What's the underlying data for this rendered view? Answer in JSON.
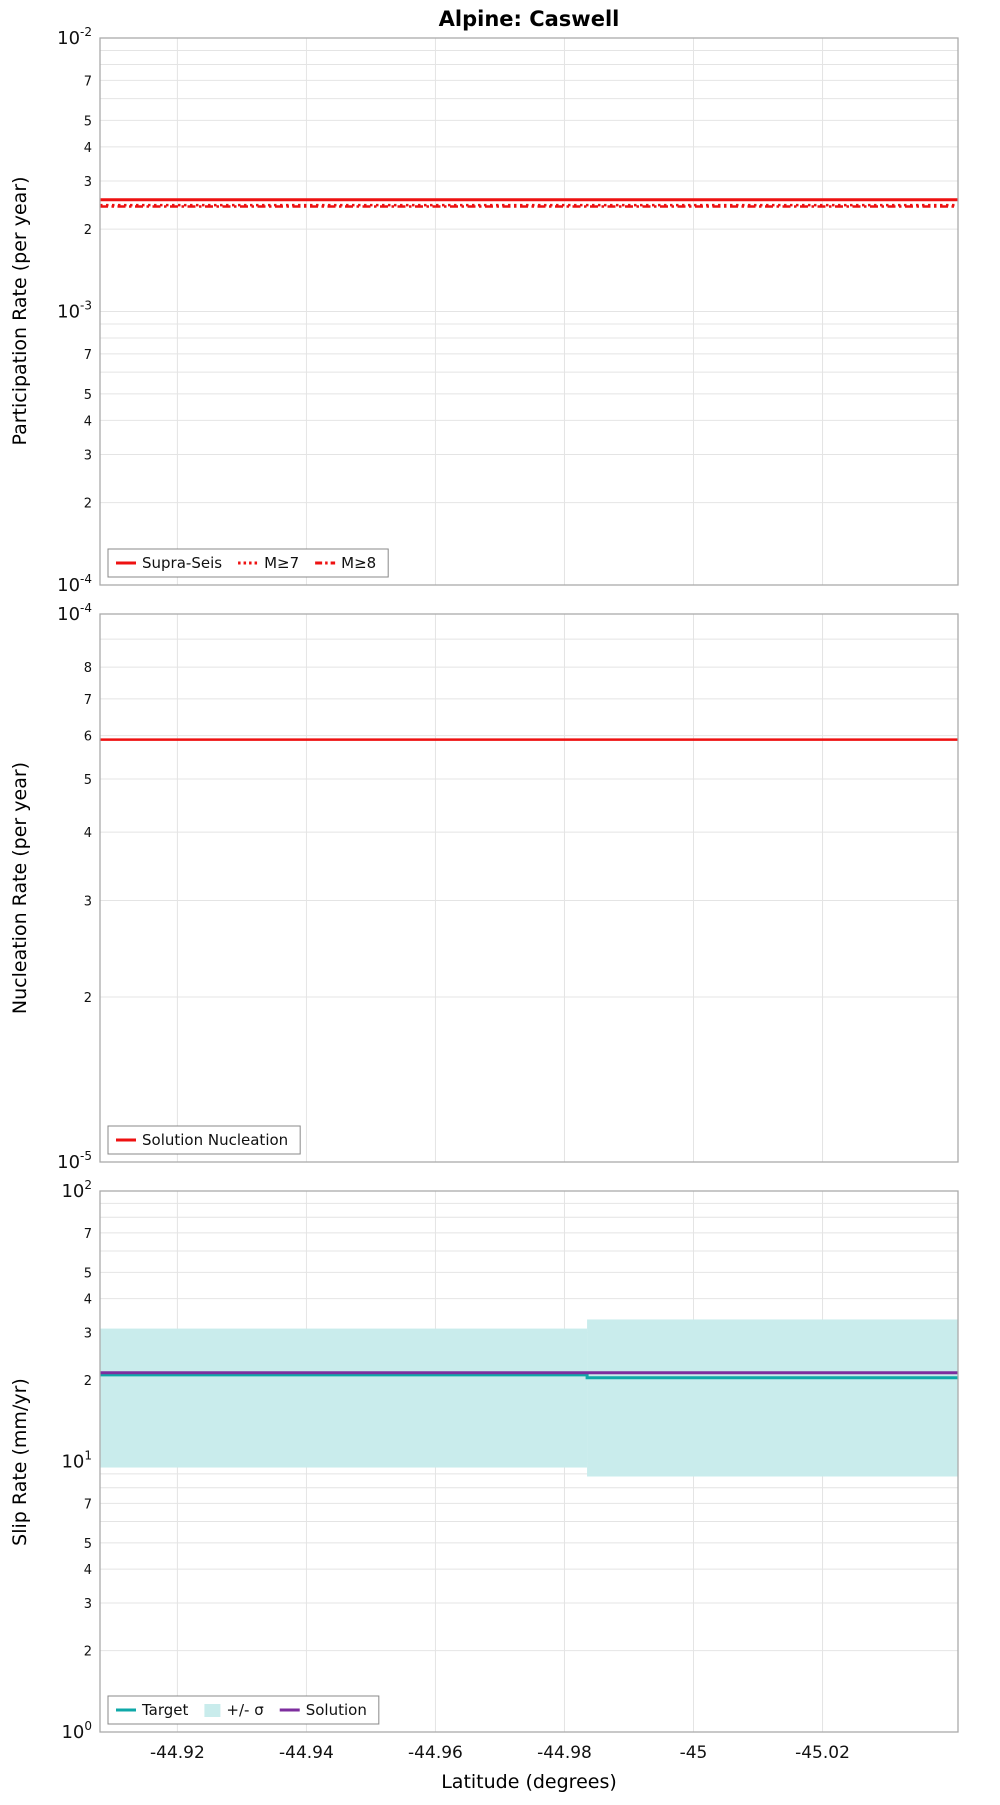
{
  "title": "Alpine: Caswell",
  "xlabel": "Latitude (degrees)",
  "colors": {
    "red": "#ee1111",
    "teal": "#0fa8a8",
    "band": "#c9ecec",
    "purple": "#7d2e9e",
    "grid": "#e4e4e4",
    "frame": "#ababab",
    "text": "#111111"
  },
  "chart_data": [
    {
      "type": "line",
      "panel": "participation-rate",
      "ylabel": "Participation Rate (per year)",
      "yscale": "log",
      "ylim": [
        0.0001,
        0.01
      ],
      "minor_tick_labels": [
        2,
        3,
        4,
        5,
        7
      ],
      "xlim": [
        -44.908,
        -45.041
      ],
      "xticks": [
        -44.92,
        -44.94,
        -44.96,
        -44.98,
        -45,
        -45.02
      ],
      "xtick_labels": [
        "-44.92",
        "-44.94",
        "-44.96",
        "-44.98",
        "-45",
        "-45.02"
      ],
      "grid": true,
      "legend_position": "bottom-left",
      "series": [
        {
          "name": "Supra-Seis",
          "kind": "line",
          "style": "solid",
          "color": "#ee1111",
          "width": 3,
          "x": [
            -44.908,
            -45.041
          ],
          "y": [
            0.00256,
            0.00256
          ]
        },
        {
          "name": "M≥7",
          "kind": "line",
          "style": "dotted",
          "color": "#ee1111",
          "width": 2.5,
          "x": [
            -44.908,
            -45.041
          ],
          "y": [
            0.00245,
            0.00245
          ]
        },
        {
          "name": "M≥8",
          "kind": "line",
          "style": "dashdot",
          "color": "#ee1111",
          "width": 2.5,
          "x": [
            -44.908,
            -45.041
          ],
          "y": [
            0.00242,
            0.00242
          ]
        }
      ],
      "legend": [
        "Supra-Seis",
        "M≥7",
        "M≥8"
      ]
    },
    {
      "type": "line",
      "panel": "nucleation-rate",
      "ylabel": "Nucleation Rate (per year)",
      "yscale": "log",
      "ylim": [
        1e-05,
        0.0001
      ],
      "minor_tick_labels": [
        2,
        3,
        4,
        5,
        6,
        7,
        8
      ],
      "xlim": [
        -44.908,
        -45.041
      ],
      "xticks": [
        -44.92,
        -44.94,
        -44.96,
        -44.98,
        -45,
        -45.02
      ],
      "xtick_labels": [
        "-44.92",
        "-44.94",
        "-44.96",
        "-44.98",
        "-45",
        "-45.02"
      ],
      "grid": true,
      "legend_position": "bottom-left",
      "series": [
        {
          "name": "Solution Nucleation",
          "kind": "line",
          "style": "solid",
          "color": "#ee1111",
          "width": 2.5,
          "x": [
            -44.908,
            -45.041
          ],
          "y": [
            5.9e-05,
            5.9e-05
          ]
        }
      ],
      "legend": [
        "Solution Nucleation"
      ]
    },
    {
      "type": "line",
      "panel": "slip-rate",
      "ylabel": "Slip Rate (mm/yr)",
      "yscale": "log",
      "ylim": [
        1,
        100
      ],
      "minor_tick_labels": [
        2,
        3,
        4,
        5,
        7
      ],
      "xlim": [
        -44.908,
        -45.041
      ],
      "xticks": [
        -44.92,
        -44.94,
        -44.96,
        -44.98,
        -45,
        -45.02
      ],
      "xtick_labels": [
        "-44.92",
        "-44.94",
        "-44.96",
        "-44.98",
        "-45",
        "-45.02"
      ],
      "grid": true,
      "legend_position": "bottom-left",
      "series": [
        {
          "name": "+/- σ",
          "kind": "band",
          "color": "#c9ecec",
          "segments": [
            {
              "x": [
                -44.908,
                -44.9835
              ],
              "lo": 9.5,
              "hi": 31.0
            },
            {
              "x": [
                -44.9835,
                -45.041
              ],
              "lo": 8.8,
              "hi": 33.5
            }
          ]
        },
        {
          "name": "Target",
          "kind": "line",
          "style": "solid",
          "color": "#0fa8a8",
          "width": 3,
          "x": [
            -44.908,
            -44.9835,
            -44.9835,
            -45.041
          ],
          "y": [
            20.9,
            20.9,
            20.4,
            20.4
          ]
        },
        {
          "name": "Solution",
          "kind": "line",
          "style": "solid",
          "color": "#7d2e9e",
          "width": 3,
          "x": [
            -44.908,
            -45.041
          ],
          "y": [
            21.3,
            21.3
          ]
        }
      ],
      "legend": [
        "Target",
        "+/- σ",
        "Solution"
      ]
    }
  ]
}
